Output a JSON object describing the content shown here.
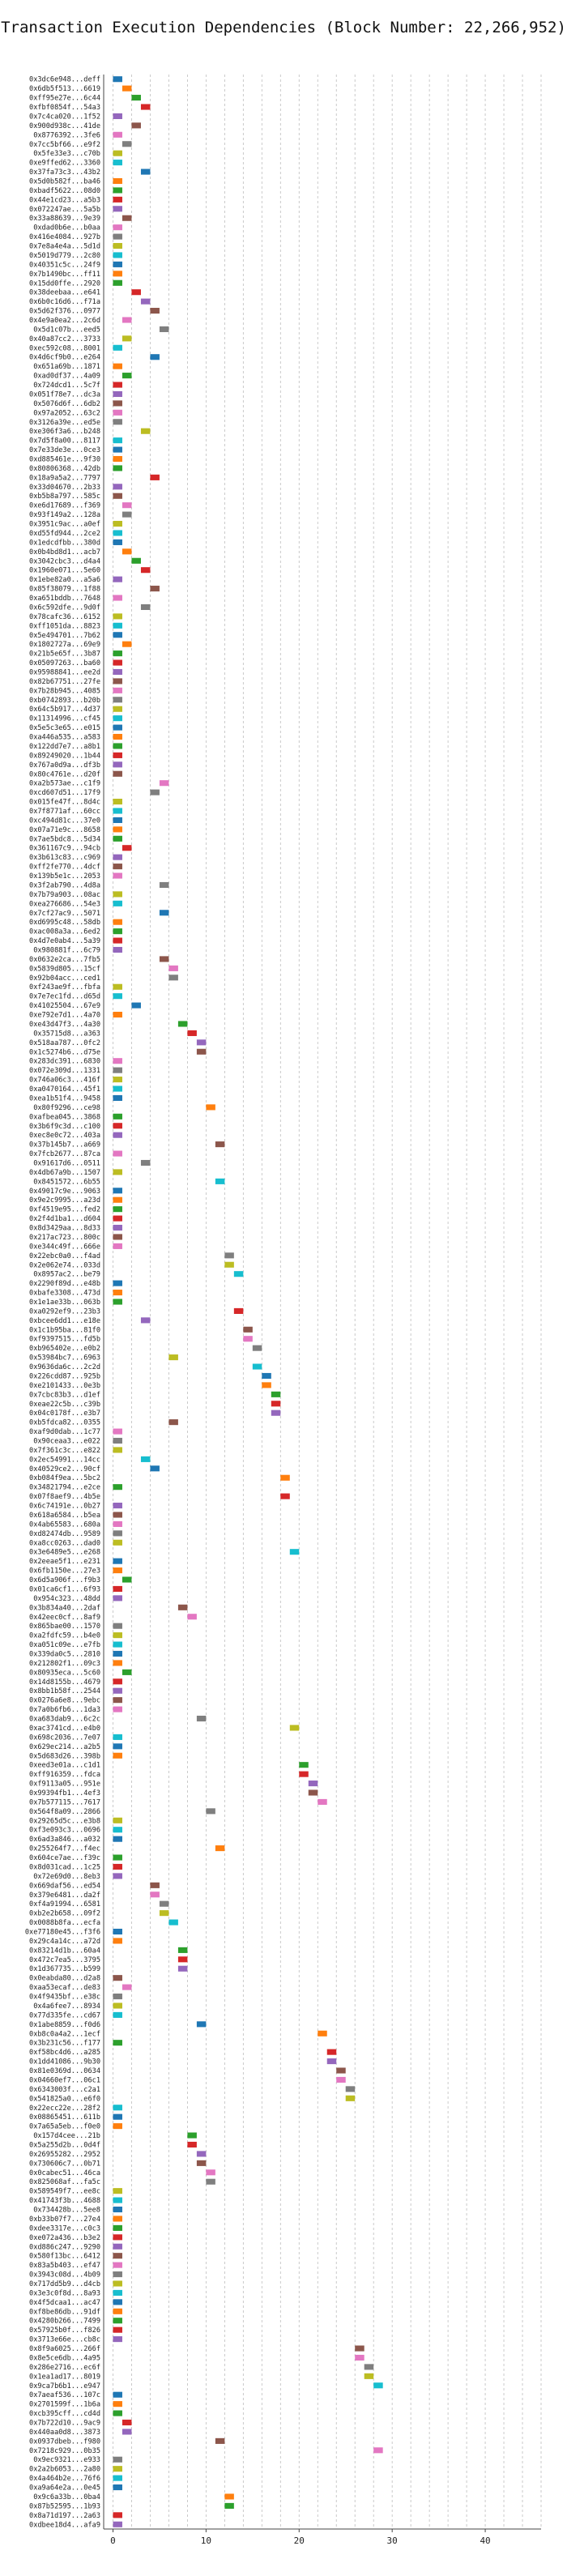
{
  "chart_data": {
    "type": "gantt",
    "title": "Transaction Execution Dependencies (Block Number: 22,266,952)",
    "xlabel": "",
    "ylabel": "",
    "xlim": [
      -1,
      46
    ],
    "xticks": [
      0,
      10,
      20,
      30,
      40
    ],
    "grid": true,
    "legend": "none",
    "palette": [
      "#1f77b4",
      "#ff7f0e",
      "#2ca02c",
      "#d62728",
      "#9467bd",
      "#8c564b",
      "#e377c2",
      "#7f7f7f",
      "#bcbd22",
      "#17becf"
    ],
    "categories": [
      "0x3dc6e948...deff",
      "0x6db5f513...6619",
      "0xff95e27e...6c44",
      "0xfbf0854f...54a3",
      "0x7c4ca020...1f52",
      "0x900d938c...41de",
      "0x8776392...3fe6",
      "0x7cc5bf66...e9f2",
      "0x5fe33e3...c70b",
      "0xe9ffed62...3360",
      "0x37fa73c3...43b2",
      "0x5d0b582f...ba46",
      "0xbadf5622...08d0",
      "0x44e1cd23...a5b3",
      "0x072247ae...5a5b",
      "0x33a88639...9e39",
      "0xdad0b6e...b0aa",
      "0x416e4084...927b",
      "0x7e8a4e4a...5d1d",
      "0x5019d779...2c80",
      "0x40351c5c...24f9",
      "0x7b1490bc...ff11",
      "0x15dd0ffe...2920",
      "0x38deebaa...e641",
      "0x6b0c16d6...f71a",
      "0x5d62f376...0977",
      "0x4e9a0ea2...2c6d",
      "0x5d1c07b...eed5",
      "0x40a87cc2...3733",
      "0xec592c08...8001",
      "0x4d6cf9b0...e264",
      "0x651a69b...1871",
      "0xad0df37...4a09",
      "0x724dcd1...5c7f",
      "0x051f78e7...dc3a",
      "0x5076d6f...6db2",
      "0x97a2052...63c2",
      "0x3126a39e...ed5e",
      "0xe306f3a6...b248",
      "0x7d5f8a00...8117",
      "0x7e33de3e...0ce3",
      "0xd885461e...9f30",
      "0x80806368...42db",
      "0x18a9a5a2...7797",
      "0x33d04670...2b33",
      "0xb5b8a797...585c",
      "0xe6d17689...f369",
      "0x93f149a2...128a",
      "0x3951c9ac...a0ef",
      "0xd55fd944...2ce2",
      "0x1edcdfbb...380d",
      "0x0b4bd8d1...acb7",
      "0x3042cbc3...d4a4",
      "0x1960e071...5e60",
      "0x1ebe82a0...a5a6",
      "0x85f38079...1f88",
      "0xa651bddb...7648",
      "0x6c592dfe...9d0f",
      "0x78cafc36...6152",
      "0xff1051da...8823",
      "0x5e494701...7b62",
      "0x1802727a...69e9",
      "0x21b5e65f...3b87",
      "0x05097263...ba60",
      "0x95988841...ee2d",
      "0x82b67751...27fe",
      "0x7b28b945...4085",
      "0xb0742893...b20b",
      "0x64c5b917...4d37",
      "0x11314996...cf45",
      "0x5e5c3e65...e015",
      "0xa446a535...a583",
      "0x122dd7e7...a8b1",
      "0x89249020...1b44",
      "0x767a0d9a...df3b",
      "0x80c4761e...d20f",
      "0xa2b573ae...c1f9",
      "0xcd607d51...17f9",
      "0x015fe47f...8d4c",
      "0x7f8771af...60cc",
      "0xc494d81c...37e0",
      "0x07a71e9c...8658",
      "0x7ae5bdc8...5d34",
      "0x361167c9...94cb",
      "0x3b613c83...c969",
      "0xff2fe770...4dcf",
      "0x139b5e1c...2053",
      "0x3f2ab790...4d8a",
      "0x7b79a903...08ac",
      "0xea276686...54e3",
      "0x7cf27ac9...5071",
      "0xd6995c48...58db",
      "0xac008a3a...6ed2",
      "0x4d7e0ab4...5a39",
      "0x980881f...6c79",
      "0x0632e2ca...7fb5",
      "0x5839d805...15cf",
      "0x92b04acc...ced1",
      "0xf243ae9f...fbfa",
      "0x7e7ec1fd...d65d",
      "0x41025504...67e9",
      "0xe792e7d1...4a70",
      "0xe43d47f3...4a30",
      "0x35715d8...a363",
      "0x518aa787...0fc2",
      "0x1c5274b6...d75e",
      "0x283dc391...6830",
      "0x072e309d...1331",
      "0x746a06c3...416f",
      "0xa0470164...45f1",
      "0xea1b51f4...9458",
      "0x80f9296...ce98",
      "0xafbea045...3868",
      "0x3b6f9c3d...c100",
      "0xec8e0c72...403a",
      "0x37b145b7...a669",
      "0x7fcb2677...87ca",
      "0x91617d6...0511",
      "0x4db67a9b...1507",
      "0x8451572...6b55",
      "0x49017c9e...9063",
      "0x9e2c9995...a23d",
      "0xf4519e95...fed2",
      "0x2f4d1ba1...d604",
      "0x8d3429aa...8d33",
      "0x217ac723...800c",
      "0xe344c49f...666e",
      "0x22ebc0a0...f4ad",
      "0x2e062e74...033d",
      "0x8957ac2...be79",
      "0x2290f89d...e48b",
      "0xbafe3308...473d",
      "0x1e1ae33b...063b",
      "0xa0292ef9...23b3",
      "0xbcee6dd1...e18e",
      "0x1c1b95ba...81f0",
      "0xf9397515...fd5b",
      "0xb965402e...e0b2",
      "0x53984bc7...6963",
      "0x9636da6c...2c2d",
      "0x226cdd87...925b",
      "0xe2101433...0e3b",
      "0x7cbc83b3...d1ef",
      "0xeae22c5b...c39b",
      "0x04c0178f...e3b7",
      "0xb5fdca82...0355",
      "0xaf9d0dab...1c77",
      "0x90ceaa3...e022",
      "0x7f361c3c...e822",
      "0x2ec54991...14cc",
      "0x40529ce2...90cf",
      "0xb084f9ea...5bc2",
      "0x34821794...e2ce",
      "0x07f8aef9...4b5e",
      "0x6c74191e...0b27",
      "0x618a6584...b5ea",
      "0x4ab65583...680a",
      "0xd82474db...9589",
      "0xa8cc0263...dad0",
      "0x3e6489e5...e268",
      "0x2eeae5f1...e231",
      "0x6fb1150e...27e3",
      "0x6d5a906f...f9b3",
      "0x01ca6cf1...6f93",
      "0x954c323...48dd",
      "0x3b834a40...2daf",
      "0x42eec0cf...8af9",
      "0x865bae00...1570",
      "0xa2fdfc59...b4e0",
      "0xa051c09e...e7fb",
      "0x339da0c5...2810",
      "0x212802f1...09c3",
      "0x80935eca...5c60",
      "0x14d8155b...4679",
      "0x8bb1b58f...2544",
      "0x0276a6e8...9ebc",
      "0x7a0b6fb6...1da3",
      "0xa683dab9...6c2c",
      "0xac3741cd...e4b0",
      "0x698c2036...7e07",
      "0x629ec214...a2b5",
      "0x5d683d26...398b",
      "0xeed3e01a...c1d1",
      "0xff916359...fdca",
      "0xf9113a05...951e",
      "0x99394fb1...4ef3",
      "0x7b577115...7617",
      "0x564f8a09...2866",
      "0x29265d5c...e3b8",
      "0xf3e093c3...0696",
      "0x6ad3a846...a032",
      "0x255264f7...f4ec",
      "0x604ce7ae...f39c",
      "0x8d031cad...1c25",
      "0x72e69d0...8eb3",
      "0x669daf56...ed54",
      "0x379e6481...da2f",
      "0xf4a91994...6581",
      "0xb2e2b658...09f2",
      "0x0088b8fa...ecfa",
      "0xe77180e45...f3f6",
      "0x29c4a14c...a72d",
      "0x83214d1b...60a4",
      "0x472c7ea5...3795",
      "0x1d367735...b599",
      "0x0eabda80...d2a8",
      "0xaa53ecaf...de83",
      "0x4f9435bf...e38c",
      "0x4a6fee7...8934",
      "0x77d335fe...cd67",
      "0x1abe8859...f0d6",
      "0xb8c0a4a2...1ecf",
      "0x3b231c56...f177",
      "0xf58bc4d6...a285",
      "0x1dd41086...9b30",
      "0x81e0369d...0634",
      "0x04660ef7...06c1",
      "0x6343003f...c2a1",
      "0x541825a0...e6f0",
      "0x22ecc22e...28f2",
      "0x08865451...611b",
      "0x7a65a5eb...f0e0",
      "0x157d4cee...21b",
      "0x5a255d2b...0d4f",
      "0x26955282...2952",
      "0x730606c7...0b71",
      "0x0cabec51...46ca",
      "0x825068af...fa5c",
      "0x589549f7...ee8c",
      "0x41743f3b...4688",
      "0x734428b...5ee8",
      "0xb33b07f7...27e4",
      "0xdee3317e...c0c3",
      "0xe072a436...b3e2",
      "0xd886c247...9290",
      "0x580f13bc...6412",
      "0x83a5b403...ef47",
      "0x3943c08d...4b09",
      "0x717dd5b9...d4cb",
      "0x3e3c0f8d...8a93",
      "0x4f5dcaa1...ac47",
      "0xf8be86db...91df",
      "0x4280b266...7499",
      "0x57925b0f...f826",
      "0x3713e66e...cb8c",
      "0x8f9a6025...266f",
      "0x8e5ce6db...4a95",
      "0x286e2716...ec6f",
      "0x1ea1ad17...8019",
      "0x9ca7b6b1...e947",
      "0x7aeaf536...107c",
      "0x2701599f...1b6a",
      "0xcb395cff...cd4d",
      "0x7b722d10...9ac9",
      "0x440aa0d8...3873",
      "0x0937dbeb...f980",
      "0x7218c929...0b35",
      "0x9ec9321...e933",
      "0x2a2b6053...2a80",
      "0x4a464b2e...76f6",
      "0xa9a64e2a...0e45",
      "0x9c6a33b...0ba4",
      "0x87b52595...1b93",
      "0x8a71d197...2a63",
      "0xdbee18d4...afa9"
    ],
    "values": [
      [
        0,
        1
      ],
      [
        1,
        2
      ],
      [
        2,
        3
      ],
      [
        3,
        4
      ],
      [
        0,
        1
      ],
      [
        2,
        3
      ],
      [
        0,
        1
      ],
      [
        1,
        2
      ],
      [
        0,
        1
      ],
      [
        0,
        1
      ],
      [
        3,
        4
      ],
      [
        0,
        1
      ],
      [
        0,
        1
      ],
      [
        0,
        1
      ],
      [
        0,
        1
      ],
      [
        1,
        2
      ],
      [
        0,
        1
      ],
      [
        0,
        1
      ],
      [
        0,
        1
      ],
      [
        0,
        1
      ],
      [
        0,
        1
      ],
      [
        0,
        1
      ],
      [
        0,
        1
      ],
      [
        2,
        3
      ],
      [
        3,
        4
      ],
      [
        4,
        5
      ],
      [
        1,
        2
      ],
      [
        5,
        6
      ],
      [
        1,
        2
      ],
      [
        0,
        1
      ],
      [
        4,
        5
      ],
      [
        0,
        1
      ],
      [
        1,
        2
      ],
      [
        0,
        1
      ],
      [
        0,
        1
      ],
      [
        0,
        1
      ],
      [
        0,
        1
      ],
      [
        0,
        1
      ],
      [
        3,
        4
      ],
      [
        0,
        1
      ],
      [
        0,
        1
      ],
      [
        0,
        1
      ],
      [
        0,
        1
      ],
      [
        4,
        5
      ],
      [
        0,
        1
      ],
      [
        0,
        1
      ],
      [
        1,
        2
      ],
      [
        1,
        2
      ],
      [
        0,
        1
      ],
      [
        0,
        1
      ],
      [
        0,
        1
      ],
      [
        1,
        2
      ],
      [
        2,
        3
      ],
      [
        3,
        4
      ],
      [
        0,
        1
      ],
      [
        4,
        5
      ],
      [
        0,
        1
      ],
      [
        3,
        4
      ],
      [
        0,
        1
      ],
      [
        0,
        1
      ],
      [
        0,
        1
      ],
      [
        1,
        2
      ],
      [
        0,
        1
      ],
      [
        0,
        1
      ],
      [
        0,
        1
      ],
      [
        0,
        1
      ],
      [
        0,
        1
      ],
      [
        0,
        1
      ],
      [
        0,
        1
      ],
      [
        0,
        1
      ],
      [
        0,
        1
      ],
      [
        0,
        1
      ],
      [
        0,
        1
      ],
      [
        0,
        1
      ],
      [
        0,
        1
      ],
      [
        0,
        1
      ],
      [
        5,
        6
      ],
      [
        4,
        5
      ],
      [
        0,
        1
      ],
      [
        0,
        1
      ],
      [
        0,
        1
      ],
      [
        0,
        1
      ],
      [
        0,
        1
      ],
      [
        1,
        2
      ],
      [
        0,
        1
      ],
      [
        0,
        1
      ],
      [
        0,
        1
      ],
      [
        5,
        6
      ],
      [
        0,
        1
      ],
      [
        0,
        1
      ],
      [
        5,
        6
      ],
      [
        0,
        1
      ],
      [
        0,
        1
      ],
      [
        0,
        1
      ],
      [
        0,
        1
      ],
      [
        5,
        6
      ],
      [
        6,
        7
      ],
      [
        6,
        7
      ],
      [
        0,
        1
      ],
      [
        0,
        1
      ],
      [
        2,
        3
      ],
      [
        0,
        1
      ],
      [
        7,
        8
      ],
      [
        8,
        9
      ],
      [
        9,
        10
      ],
      [
        9,
        10
      ],
      [
        0,
        1
      ],
      [
        0,
        1
      ],
      [
        0,
        1
      ],
      [
        0,
        1
      ],
      [
        0,
        1
      ],
      [
        10,
        11
      ],
      [
        0,
        1
      ],
      [
        0,
        1
      ],
      [
        0,
        1
      ],
      [
        11,
        12
      ],
      [
        0,
        1
      ],
      [
        3,
        4
      ],
      [
        0,
        1
      ],
      [
        11,
        12
      ],
      [
        0,
        1
      ],
      [
        0,
        1
      ],
      [
        0,
        1
      ],
      [
        0,
        1
      ],
      [
        0,
        1
      ],
      [
        0,
        1
      ],
      [
        0,
        1
      ],
      [
        12,
        13
      ],
      [
        12,
        13
      ],
      [
        13,
        14
      ],
      [
        0,
        1
      ],
      [
        0,
        1
      ],
      [
        0,
        1
      ],
      [
        13,
        14
      ],
      [
        3,
        4
      ],
      [
        14,
        15
      ],
      [
        14,
        15
      ],
      [
        15,
        16
      ],
      [
        6,
        7
      ],
      [
        15,
        16
      ],
      [
        16,
        17
      ],
      [
        16,
        17
      ],
      [
        17,
        18
      ],
      [
        17,
        18
      ],
      [
        17,
        18
      ],
      [
        6,
        7
      ],
      [
        0,
        1
      ],
      [
        0,
        1
      ],
      [
        0,
        1
      ],
      [
        3,
        4
      ],
      [
        4,
        5
      ],
      [
        18,
        19
      ],
      [
        0,
        1
      ],
      [
        18,
        19
      ],
      [
        0,
        1
      ],
      [
        0,
        1
      ],
      [
        0,
        1
      ],
      [
        0,
        1
      ],
      [
        0,
        1
      ],
      [
        19,
        20
      ],
      [
        0,
        1
      ],
      [
        0,
        1
      ],
      [
        1,
        2
      ],
      [
        0,
        1
      ],
      [
        0,
        1
      ],
      [
        7,
        8
      ],
      [
        8,
        9
      ],
      [
        0,
        1
      ],
      [
        0,
        1
      ],
      [
        0,
        1
      ],
      [
        0,
        1
      ],
      [
        0,
        1
      ],
      [
        1,
        2
      ],
      [
        0,
        1
      ],
      [
        0,
        1
      ],
      [
        0,
        1
      ],
      [
        0,
        1
      ],
      [
        9,
        10
      ],
      [
        19,
        20
      ],
      [
        0,
        1
      ],
      [
        0,
        1
      ],
      [
        0,
        1
      ],
      [
        20,
        21
      ],
      [
        20,
        21
      ],
      [
        21,
        22
      ],
      [
        21,
        22
      ],
      [
        22,
        23
      ],
      [
        10,
        11
      ],
      [
        0,
        1
      ],
      [
        0,
        1
      ],
      [
        0,
        1
      ],
      [
        11,
        12
      ],
      [
        0,
        1
      ],
      [
        0,
        1
      ],
      [
        0,
        1
      ],
      [
        4,
        5
      ],
      [
        4,
        5
      ],
      [
        5,
        6
      ],
      [
        5,
        6
      ],
      [
        6,
        7
      ],
      [
        0,
        1
      ],
      [
        0,
        1
      ],
      [
        7,
        8
      ],
      [
        7,
        8
      ],
      [
        7,
        8
      ],
      [
        0,
        1
      ],
      [
        1,
        2
      ],
      [
        0,
        1
      ],
      [
        0,
        1
      ],
      [
        0,
        1
      ],
      [
        9,
        10
      ],
      [
        22,
        23
      ],
      [
        0,
        1
      ],
      [
        23,
        24
      ],
      [
        23,
        24
      ],
      [
        24,
        25
      ],
      [
        24,
        25
      ],
      [
        25,
        26
      ],
      [
        25,
        26
      ],
      [
        0,
        1
      ],
      [
        0,
        1
      ],
      [
        0,
        1
      ],
      [
        8,
        9
      ],
      [
        8,
        9
      ],
      [
        9,
        10
      ],
      [
        9,
        10
      ],
      [
        10,
        11
      ],
      [
        10,
        11
      ],
      [
        0,
        1
      ],
      [
        0,
        1
      ],
      [
        0,
        1
      ],
      [
        0,
        1
      ],
      [
        0,
        1
      ],
      [
        0,
        1
      ],
      [
        0,
        1
      ],
      [
        0,
        1
      ],
      [
        0,
        1
      ],
      [
        0,
        1
      ],
      [
        0,
        1
      ],
      [
        0,
        1
      ],
      [
        0,
        1
      ],
      [
        0,
        1
      ],
      [
        0,
        1
      ],
      [
        0,
        1
      ],
      [
        0,
        1
      ],
      [
        26,
        27
      ],
      [
        26,
        27
      ],
      [
        27,
        28
      ],
      [
        27,
        28
      ],
      [
        28,
        29
      ],
      [
        0,
        1
      ],
      [
        0,
        1
      ],
      [
        0,
        1
      ],
      [
        1,
        2
      ],
      [
        1,
        2
      ],
      [
        11,
        12
      ],
      [
        28,
        29
      ],
      [
        0,
        1
      ],
      [
        0,
        1
      ],
      [
        0,
        1
      ],
      [
        0,
        1
      ],
      [
        12,
        13
      ],
      [
        12,
        13
      ],
      [
        0,
        1
      ],
      [
        0,
        1
      ],
      [
        0,
        1
      ],
      [
        0,
        1
      ],
      [
        0,
        1
      ],
      [
        0,
        1
      ],
      [
        0,
        1
      ]
    ]
  }
}
